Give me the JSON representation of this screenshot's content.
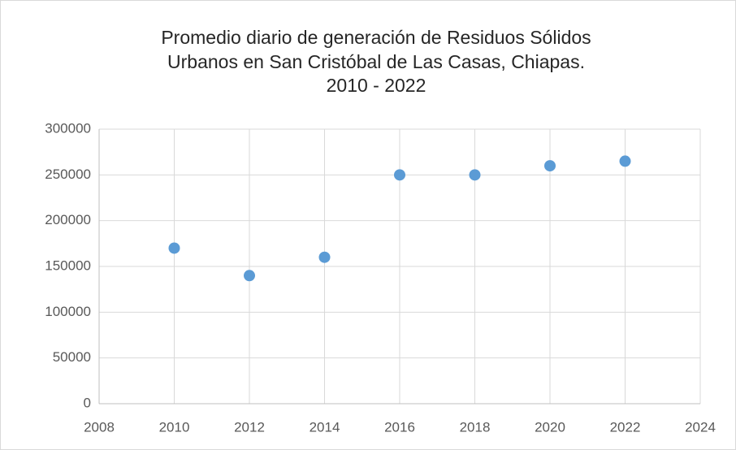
{
  "chart_data": {
    "type": "scatter",
    "title": [
      "Promedio diario de generación de Residuos Sólidos",
      "Urbanos en San Cristóbal de Las Casas, Chiapas.",
      "2010 - 2022"
    ],
    "x": [
      2010,
      2012,
      2014,
      2016,
      2018,
      2020,
      2022
    ],
    "values": [
      170000,
      140000,
      160000,
      250000,
      250000,
      260000,
      265000
    ],
    "color": "#5b9bd5",
    "xlim": [
      2008,
      2024
    ],
    "xticks": [
      2008,
      2010,
      2012,
      2014,
      2016,
      2018,
      2020,
      2022,
      2024
    ],
    "ylim": [
      0,
      300000
    ],
    "yticks": [
      0,
      50000,
      100000,
      150000,
      200000,
      250000,
      300000
    ],
    "grid": true
  }
}
